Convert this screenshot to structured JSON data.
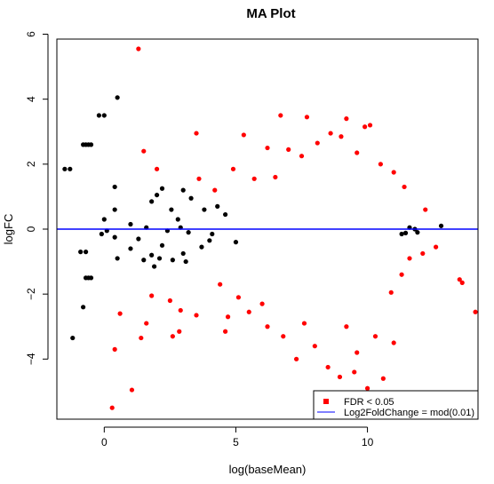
{
  "chart_data": {
    "type": "scatter",
    "title": "MA Plot",
    "xlabel": "log(baseMean)",
    "ylabel": "logFC",
    "xlim": [
      -1.8,
      14.2
    ],
    "ylim": [
      -5.85,
      5.85
    ],
    "x_ticks": [
      0,
      5,
      10
    ],
    "y_ticks": [
      -4,
      -2,
      0,
      2,
      4,
      6
    ],
    "grid": false,
    "legend_position": "bottom-right",
    "hline": {
      "y": 0,
      "color": "#0000ff"
    },
    "legend": [
      {
        "label": "FDR < 0.05",
        "marker": "square",
        "color": "#ff0000"
      },
      {
        "label": "Log2FoldChange = mod(0.01)",
        "marker": "line",
        "color": "#0000ff"
      }
    ],
    "series": [
      {
        "name": "",
        "color": "#ff0000",
        "points": [
          [
            1.3,
            5.55
          ],
          [
            6.7,
            3.5
          ],
          [
            7.7,
            3.45
          ],
          [
            9.2,
            3.4
          ],
          [
            10.1,
            3.2
          ],
          [
            9.9,
            3.15
          ],
          [
            3.5,
            2.95
          ],
          [
            5.3,
            2.9
          ],
          [
            8.6,
            2.95
          ],
          [
            6.2,
            2.5
          ],
          [
            1.5,
            2.4
          ],
          [
            9.6,
            2.35
          ],
          [
            2.0,
            1.85
          ],
          [
            3.6,
            1.55
          ],
          [
            11.4,
            1.3
          ],
          [
            12.2,
            0.6
          ],
          [
            12.6,
            -0.55
          ],
          [
            12.1,
            -0.75
          ],
          [
            13.5,
            -1.55
          ],
          [
            13.6,
            -1.65
          ],
          [
            14.1,
            -2.55
          ],
          [
            1.8,
            -2.05
          ],
          [
            2.5,
            -2.2
          ],
          [
            2.9,
            -2.5
          ],
          [
            1.6,
            -2.9
          ],
          [
            3.5,
            -2.65
          ],
          [
            4.7,
            -2.7
          ],
          [
            0.6,
            -2.6
          ],
          [
            4.6,
            -3.15
          ],
          [
            2.6,
            -3.3
          ],
          [
            1.4,
            -3.35
          ],
          [
            2.85,
            -3.15
          ],
          [
            0.4,
            -3.7
          ],
          [
            11.0,
            -3.5
          ],
          [
            10.3,
            -3.3
          ],
          [
            9.6,
            -3.8
          ],
          [
            7.3,
            -4.0
          ],
          [
            8.5,
            -4.25
          ],
          [
            8.95,
            -4.55
          ],
          [
            9.5,
            -4.4
          ],
          [
            10.6,
            -4.6
          ],
          [
            10.0,
            -4.9
          ],
          [
            1.05,
            -4.95
          ],
          [
            0.3,
            -5.5
          ],
          [
            6.2,
            -3.0
          ],
          [
            5.5,
            -2.55
          ],
          [
            8.0,
            -3.6
          ],
          [
            6.8,
            -3.3
          ],
          [
            7.0,
            2.45
          ],
          [
            7.5,
            2.25
          ],
          [
            8.1,
            2.65
          ],
          [
            9.0,
            2.85
          ],
          [
            10.5,
            2.0
          ],
          [
            11.0,
            1.75
          ],
          [
            4.2,
            1.2
          ],
          [
            4.9,
            1.85
          ],
          [
            5.7,
            1.55
          ],
          [
            6.5,
            1.6
          ],
          [
            10.9,
            -1.95
          ],
          [
            11.3,
            -1.4
          ],
          [
            11.6,
            -0.9
          ],
          [
            4.4,
            -1.7
          ],
          [
            5.1,
            -2.1
          ],
          [
            6.0,
            -2.3
          ],
          [
            9.2,
            -3.0
          ],
          [
            7.6,
            -2.9
          ]
        ]
      },
      {
        "name": "",
        "color": "#000000",
        "points": [
          [
            0.5,
            4.05
          ],
          [
            -0.2,
            3.5
          ],
          [
            0.0,
            3.5
          ],
          [
            -0.8,
            2.6
          ],
          [
            -0.7,
            2.6
          ],
          [
            -0.6,
            2.6
          ],
          [
            -0.5,
            2.6
          ],
          [
            -1.5,
            1.85
          ],
          [
            -1.3,
            1.85
          ],
          [
            0.4,
            1.3
          ],
          [
            2.2,
            1.25
          ],
          [
            3.0,
            1.2
          ],
          [
            2.0,
            1.05
          ],
          [
            3.3,
            0.95
          ],
          [
            1.8,
            0.85
          ],
          [
            2.55,
            0.6
          ],
          [
            0.4,
            0.6
          ],
          [
            0.0,
            0.3
          ],
          [
            1.0,
            0.15
          ],
          [
            1.6,
            0.05
          ],
          [
            0.1,
            -0.05
          ],
          [
            -0.1,
            -0.15
          ],
          [
            0.4,
            -0.25
          ],
          [
            1.3,
            -0.3
          ],
          [
            -0.9,
            -0.7
          ],
          [
            -0.7,
            -0.7
          ],
          [
            0.5,
            -0.9
          ],
          [
            1.8,
            -0.8
          ],
          [
            2.1,
            -0.9
          ],
          [
            1.5,
            -0.95
          ],
          [
            -0.7,
            -1.5
          ],
          [
            -0.5,
            -1.5
          ],
          [
            -0.6,
            -1.5
          ],
          [
            -0.8,
            -2.4
          ],
          [
            -1.2,
            -3.35
          ],
          [
            12.8,
            0.1
          ],
          [
            3.7,
            -0.55
          ],
          [
            3.0,
            -0.75
          ],
          [
            4.0,
            -0.35
          ],
          [
            4.3,
            0.7
          ],
          [
            3.8,
            0.6
          ],
          [
            2.8,
            0.3
          ],
          [
            2.4,
            -0.05
          ],
          [
            2.9,
            0.05
          ],
          [
            3.2,
            -0.1
          ],
          [
            4.1,
            -0.15
          ],
          [
            2.2,
            -0.5
          ],
          [
            1.0,
            -0.6
          ],
          [
            2.6,
            -0.95
          ],
          [
            1.9,
            -1.15
          ],
          [
            3.1,
            -1.0
          ],
          [
            11.6,
            0.05
          ],
          [
            11.9,
            -0.1
          ],
          [
            11.3,
            -0.15
          ],
          [
            11.8,
            0.0
          ],
          [
            11.45,
            -0.12
          ],
          [
            4.6,
            0.45
          ],
          [
            5.0,
            -0.4
          ]
        ]
      }
    ]
  }
}
